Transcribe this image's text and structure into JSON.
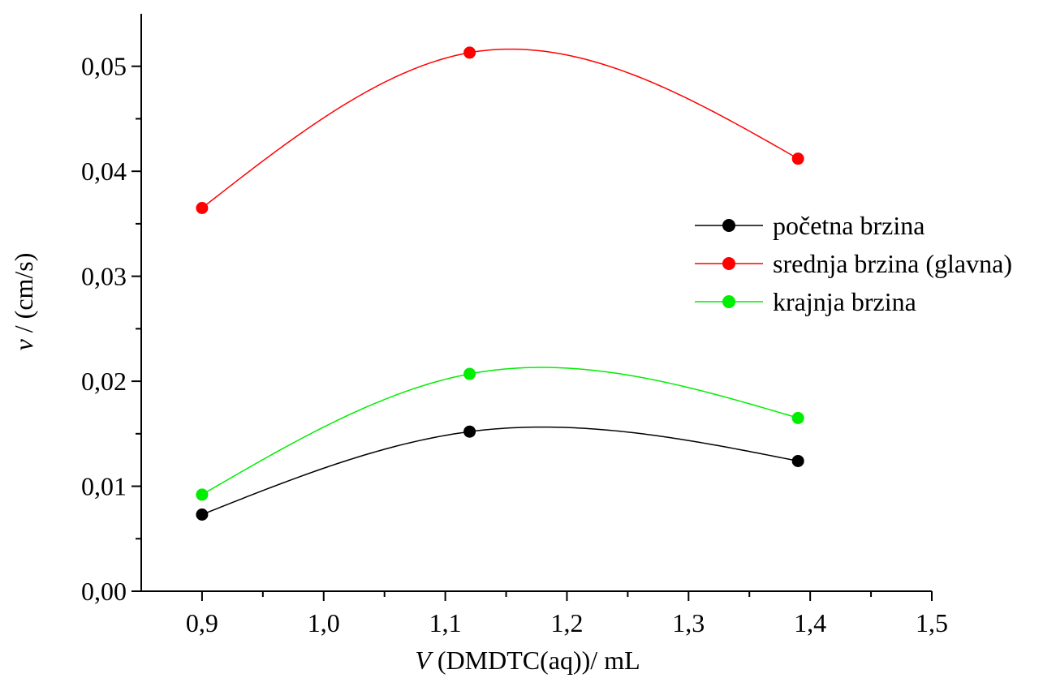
{
  "chart_data": {
    "type": "line",
    "xlabel": {
      "var": "V",
      "rest": " (DMDTC(aq))/ mL"
    },
    "ylabel": {
      "var": "v",
      "rest": " / (cm/s)"
    },
    "xlim": [
      0.85,
      1.5
    ],
    "ylim": [
      0,
      0.055
    ],
    "x_ticks": [
      0.9,
      1.0,
      1.1,
      1.2,
      1.3,
      1.4,
      1.5
    ],
    "x_tick_labels": [
      "0,9",
      "1,0",
      "1,1",
      "1,2",
      "1,3",
      "1,4",
      "1,5"
    ],
    "y_ticks": [
      0,
      0.01,
      0.02,
      0.03,
      0.04,
      0.05
    ],
    "y_tick_labels": [
      "0,00",
      "0,01",
      "0,02",
      "0,03",
      "0,04",
      "0,05"
    ],
    "grid": false,
    "legend_position": "right",
    "x": [
      0.9,
      1.12,
      1.39
    ],
    "series": [
      {
        "name": "početna brzina",
        "values": [
          0.0073,
          0.0152,
          0.0124
        ],
        "color": "#000000"
      },
      {
        "name": "srednja brzina (glavna)",
        "values": [
          0.0365,
          0.0513,
          0.0412
        ],
        "color": "#ff0000"
      },
      {
        "name": "krajnja brzina",
        "values": [
          0.0092,
          0.0207,
          0.0165
        ],
        "color": "#00ee00"
      }
    ]
  }
}
